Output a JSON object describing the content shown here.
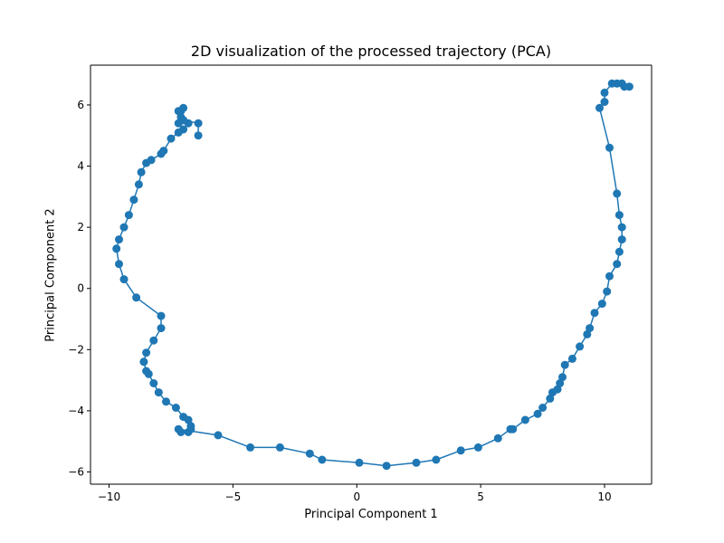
{
  "chart_data": {
    "type": "line",
    "title": "2D visualization of the processed trajectory (PCA)",
    "xlabel": "Principal Component 1",
    "ylabel": "Principal Component 2",
    "xlim": [
      -10.75,
      11.9
    ],
    "ylim": [
      -6.4,
      7.3
    ],
    "xticks": [
      -10,
      -5,
      0,
      5,
      10
    ],
    "xtick_labels": [
      "−10",
      "−5",
      "0",
      "5",
      "10"
    ],
    "yticks": [
      -6,
      -4,
      -2,
      0,
      2,
      4,
      6
    ],
    "ytick_labels": [
      "−6",
      "−4",
      "−2",
      "0",
      "2",
      "4",
      "6"
    ],
    "grid": false,
    "legend": "none",
    "series": [
      {
        "color": "#1f77b4",
        "marker": "circle",
        "x": [
          -6.4,
          -6.4,
          -7.0,
          -7.2,
          -7.1,
          -7.0,
          -7.2,
          -7.1,
          -7.0,
          -6.8,
          -7.0,
          -7.2,
          -7.5,
          -7.8,
          -7.9,
          -8.3,
          -8.5,
          -8.7,
          -8.8,
          -9.0,
          -9.2,
          -9.4,
          -9.6,
          -9.7,
          -9.6,
          -9.4,
          -8.9,
          -7.9,
          -7.9,
          -8.2,
          -8.5,
          -8.6,
          -8.5,
          -8.4,
          -8.2,
          -8.0,
          -7.7,
          -7.3,
          -7.0,
          -6.8,
          -6.7,
          -6.7,
          -6.8,
          -7.1,
          -7.2,
          -5.6,
          -4.3,
          -3.1,
          -1.9,
          -1.4,
          0.1,
          1.2,
          2.4,
          3.2,
          4.2,
          4.9,
          5.7,
          6.2,
          6.3,
          6.8,
          7.3,
          7.5,
          7.8,
          7.9,
          8.1,
          8.2,
          8.3,
          8.4,
          8.7,
          9.0,
          9.3,
          9.4,
          9.6,
          9.9,
          10.1,
          10.2,
          10.5,
          10.6,
          10.7,
          10.7,
          10.6,
          10.5,
          10.2,
          9.8,
          10.0,
          10.0,
          10.3,
          10.5,
          10.7,
          10.8,
          11.0
        ],
        "y": [
          5.0,
          5.4,
          5.5,
          5.4,
          5.8,
          5.9,
          5.8,
          5.6,
          5.5,
          5.4,
          5.2,
          5.1,
          4.9,
          4.5,
          4.4,
          4.2,
          4.1,
          3.8,
          3.4,
          2.9,
          2.4,
          2.0,
          1.6,
          1.3,
          0.8,
          0.3,
          -0.3,
          -0.9,
          -1.3,
          -1.7,
          -2.1,
          -2.4,
          -2.7,
          -2.8,
          -3.1,
          -3.4,
          -3.7,
          -3.9,
          -4.2,
          -4.3,
          -4.5,
          -4.6,
          -4.7,
          -4.7,
          -4.6,
          -4.8,
          -5.2,
          -5.2,
          -5.4,
          -5.6,
          -5.7,
          -5.8,
          -5.7,
          -5.6,
          -5.3,
          -5.2,
          -4.9,
          -4.6,
          -4.6,
          -4.3,
          -4.1,
          -3.9,
          -3.6,
          -3.4,
          -3.3,
          -3.1,
          -2.9,
          -2.5,
          -2.3,
          -1.9,
          -1.5,
          -1.3,
          -0.8,
          -0.5,
          -0.1,
          0.4,
          0.8,
          1.2,
          1.6,
          2.0,
          2.4,
          3.1,
          4.6,
          5.9,
          6.1,
          6.4,
          6.7,
          6.7,
          6.7,
          6.6,
          6.6
        ]
      }
    ]
  }
}
